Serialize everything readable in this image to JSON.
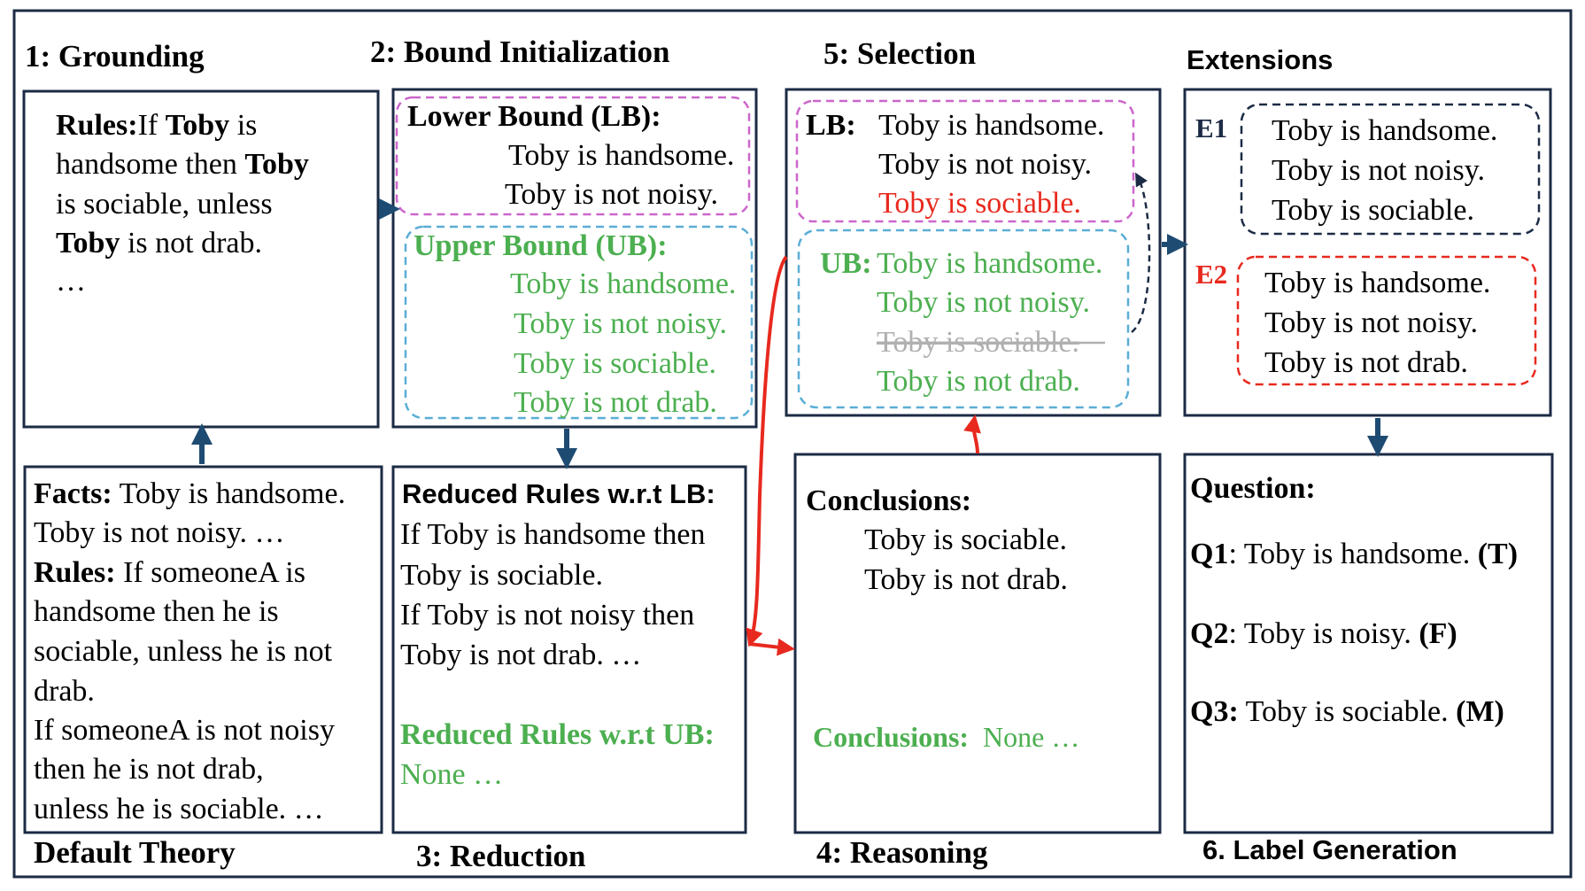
{
  "colors": {
    "green": "#4caf50",
    "red": "#e8291e",
    "navy": "#1e4b72",
    "pink_dash": "#cc66cc",
    "blue_dash": "#5aaed6",
    "dark_dash": "#1c2b45",
    "gray_strike": "#b0b0b0"
  },
  "headings": {
    "grounding": "1: Grounding",
    "bound_init": "2: Bound Initialization",
    "selection": "5: Selection",
    "extensions": "Extensions",
    "default_theory": "Default Theory",
    "reduction": "3: Reduction",
    "reasoning": "4: Reasoning",
    "label_generation": "6. Label  Generation"
  },
  "grounding_box": {
    "rules_label": "Rules:",
    "l1_pre": "If ",
    "l1_toby": "Toby",
    "l1_post": " is",
    "l2_pre": "handsome then ",
    "l2_toby": "Toby",
    "l3": "is sociable, unless",
    "l4_toby": "Toby",
    "l4_post": " is not drab.",
    "l5": "…"
  },
  "default_theory_box": {
    "facts_label": "Facts:",
    "facts_l1": " Toby is handsome.",
    "facts_l2": "Toby is not noisy. …",
    "rules_label": "Rules:",
    "rules_l1": " If someoneA is",
    "rules_l2": "handsome then he is",
    "rules_l3": "sociable, unless he is not",
    "rules_l4": "drab.",
    "rules_l5": "If someoneA is not noisy",
    "rules_l6": "then he is not drab,",
    "rules_l7": "unless he is sociable. …"
  },
  "bound_box": {
    "lb_title": "Lower Bound (LB):",
    "lb_items": [
      "Toby is handsome.",
      "Toby is not noisy."
    ],
    "ub_title": "Upper Bound (UB):",
    "ub_items": [
      "Toby is handsome.",
      "Toby is not noisy.",
      "Toby is sociable.",
      "Toby is not drab."
    ]
  },
  "reduction_box": {
    "lb_title": "Reduced Rules w.r.t LB:",
    "lb_lines": [
      "If Toby is handsome then",
      "Toby is sociable.",
      "If Toby is not noisy then",
      "Toby is not drab. …"
    ],
    "ub_title": "Reduced Rules w.r.t UB:",
    "ub_lines": [
      "None …"
    ]
  },
  "selection_box": {
    "lb_label": "LB:",
    "lb_items": [
      "Toby is handsome.",
      "Toby is not noisy."
    ],
    "lb_new": "Toby is sociable.",
    "ub_label": "UB:",
    "ub_items": [
      "Toby is handsome.",
      "Toby is not noisy."
    ],
    "ub_struck": "Toby is sociable.",
    "ub_last": "Toby is not drab."
  },
  "reasoning_box": {
    "title": "Conclusions:",
    "items": [
      "Toby is sociable.",
      "Toby is not drab."
    ],
    "ub_label": "Conclusions:",
    "ub_value": "None …"
  },
  "extensions_box": {
    "e1_label": "E1",
    "e1_items": [
      "Toby is handsome.",
      "Toby is not noisy.",
      "Toby is sociable."
    ],
    "e2_label": "E2",
    "e2_items": [
      "Toby is handsome.",
      "Toby is not noisy.",
      "Toby is not drab."
    ]
  },
  "question_box": {
    "title": "Question:",
    "q1_label": "Q1",
    "q1_text": ": Toby is handsome. ",
    "q1_ans": "(T)",
    "q2_label": "Q2",
    "q2_text": ": Toby is noisy. ",
    "q2_ans": "(F)",
    "q3_label": "Q3:",
    "q3_text": " Toby is sociable. ",
    "q3_ans": "(M)"
  }
}
